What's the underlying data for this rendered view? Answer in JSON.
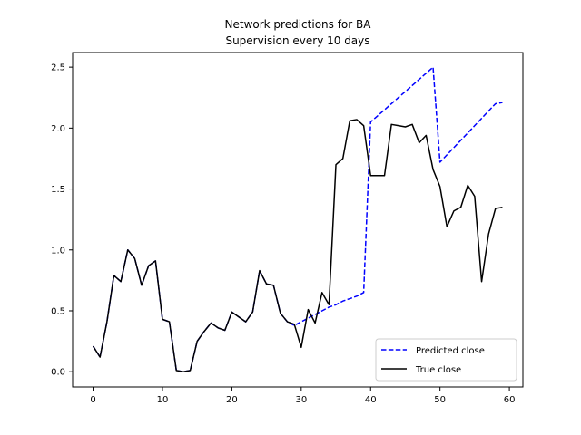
{
  "chart_data": {
    "type": "line",
    "title": "Network predictions for BA",
    "subtitle": "Supervision every 10 days",
    "xlabel": "",
    "ylabel": "",
    "xlim": [
      -2.95,
      61.95
    ],
    "ylim": [
      -0.125,
      2.62
    ],
    "xticks": [
      0,
      10,
      20,
      30,
      40,
      50,
      60
    ],
    "yticks": [
      0.0,
      0.5,
      1.0,
      1.5,
      2.0,
      2.5
    ],
    "ytick_labels": [
      "0.0",
      "0.5",
      "1.0",
      "1.5",
      "2.0",
      "2.5"
    ],
    "grid": false,
    "legend_position": "lower-right",
    "series": [
      {
        "name": "Predicted close",
        "color": "#0000ff",
        "style": "dashed",
        "x": [
          0,
          1,
          2,
          3,
          4,
          5,
          6,
          7,
          8,
          9,
          10,
          11,
          12,
          13,
          14,
          15,
          16,
          17,
          18,
          19,
          20,
          21,
          22,
          23,
          24,
          25,
          26,
          27,
          28,
          29,
          30,
          31,
          32,
          33,
          34,
          35,
          36,
          37,
          38,
          39,
          40,
          41,
          42,
          43,
          44,
          45,
          46,
          47,
          48,
          49,
          50,
          51,
          52,
          53,
          54,
          55,
          56,
          57,
          58,
          59
        ],
        "values": [
          0.21,
          0.12,
          0.41,
          0.79,
          0.74,
          1.0,
          0.93,
          0.71,
          0.87,
          0.91,
          0.43,
          0.41,
          0.01,
          0.0,
          0.01,
          0.25,
          0.33,
          0.4,
          0.36,
          0.34,
          0.49,
          0.45,
          0.41,
          0.49,
          0.83,
          0.72,
          0.71,
          0.48,
          0.41,
          0.38,
          0.41,
          0.44,
          0.47,
          0.5,
          0.53,
          0.55,
          0.58,
          0.6,
          0.62,
          0.65,
          2.05,
          2.1,
          2.15,
          2.2,
          2.25,
          2.3,
          2.35,
          2.4,
          2.45,
          2.5,
          1.72,
          1.78,
          1.84,
          1.9,
          1.96,
          2.02,
          2.08,
          2.14,
          2.2,
          2.21
        ]
      },
      {
        "name": "True close",
        "color": "#000000",
        "style": "solid",
        "x": [
          0,
          1,
          2,
          3,
          4,
          5,
          6,
          7,
          8,
          9,
          10,
          11,
          12,
          13,
          14,
          15,
          16,
          17,
          18,
          19,
          20,
          21,
          22,
          23,
          24,
          25,
          26,
          27,
          28,
          29,
          30,
          31,
          32,
          33,
          34,
          35,
          36,
          37,
          38,
          39,
          40,
          41,
          42,
          43,
          44,
          45,
          46,
          47,
          48,
          49,
          50,
          51,
          52,
          53,
          54,
          55,
          56,
          57,
          58,
          59
        ],
        "values": [
          0.21,
          0.12,
          0.41,
          0.79,
          0.74,
          1.0,
          0.93,
          0.71,
          0.87,
          0.91,
          0.43,
          0.41,
          0.01,
          0.0,
          0.01,
          0.25,
          0.33,
          0.4,
          0.36,
          0.34,
          0.49,
          0.45,
          0.41,
          0.49,
          0.83,
          0.72,
          0.71,
          0.48,
          0.41,
          0.39,
          0.2,
          0.51,
          0.4,
          0.65,
          0.55,
          1.7,
          1.75,
          2.06,
          2.07,
          2.02,
          1.61,
          1.61,
          1.61,
          2.03,
          2.02,
          2.01,
          2.03,
          1.88,
          1.94,
          1.66,
          1.52,
          1.19,
          1.32,
          1.35,
          1.53,
          1.44,
          0.74,
          1.13,
          1.34,
          1.35
        ]
      }
    ]
  }
}
